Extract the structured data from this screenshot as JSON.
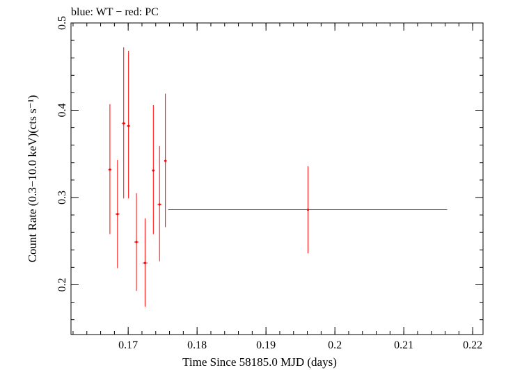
{
  "chart_data": {
    "type": "scatter",
    "title": "blue: WT − red: PC",
    "xlabel": "Time Since 58185.0 MJD (days)",
    "ylabel": "Count Rate (0.3−10.0 keV)(cts s⁻¹)",
    "xlim": [
      0.1617,
      0.2215
    ],
    "ylim": [
      0.143,
      0.5
    ],
    "x_ticks": [
      0.17,
      0.18,
      0.19,
      0.2,
      0.21,
      0.22
    ],
    "x_tick_labels": [
      "0.17",
      "0.18",
      "0.19",
      "0.2",
      "0.21",
      "0.22"
    ],
    "y_ticks": [
      0.2,
      0.3,
      0.4,
      0.5
    ],
    "y_tick_labels": [
      "0.2",
      "0.3",
      "0.4",
      "0.5"
    ],
    "x_minor_step": 0.002,
    "y_minor_step": 0.02,
    "grid": false,
    "series": [
      {
        "color": "#ff0000",
        "points": [
          {
            "x": 0.16735,
            "y": 0.332,
            "xerr": 0.00025,
            "yerr_lo": 0.074,
            "yerr_hi": 0.075
          },
          {
            "x": 0.16845,
            "y": 0.281,
            "xerr": 0.0003,
            "yerr_lo": 0.062,
            "yerr_hi": 0.062
          },
          {
            "x": 0.16935,
            "y": 0.385,
            "xerr": 0.00025,
            "yerr_lo": 0.086,
            "yerr_hi": 0.087
          },
          {
            "x": 0.17005,
            "y": 0.382,
            "xerr": 0.00025,
            "yerr_lo": 0.083,
            "yerr_hi": 0.086
          },
          {
            "x": 0.1712,
            "y": 0.249,
            "xerr": 0.0003,
            "yerr_lo": 0.056,
            "yerr_hi": 0.056
          },
          {
            "x": 0.17245,
            "y": 0.225,
            "xerr": 0.00035,
            "yerr_lo": 0.05,
            "yerr_hi": 0.051
          },
          {
            "x": 0.17365,
            "y": 0.331,
            "xerr": 0.0002,
            "yerr_lo": 0.073,
            "yerr_hi": 0.075
          },
          {
            "x": 0.17455,
            "y": 0.292,
            "xerr": 0.0003,
            "yerr_lo": 0.065,
            "yerr_hi": 0.067
          },
          {
            "x": 0.1754,
            "y": 0.342,
            "xerr": 0.0002,
            "yerr_lo": 0.076,
            "yerr_hi": 0.077
          },
          {
            "x": 0.1961,
            "y": 0.286,
            "xerr_lo": 0.0203,
            "xerr_hi": 0.0202,
            "yerr_lo": 0.05,
            "yerr_hi": 0.05
          }
        ]
      }
    ]
  }
}
